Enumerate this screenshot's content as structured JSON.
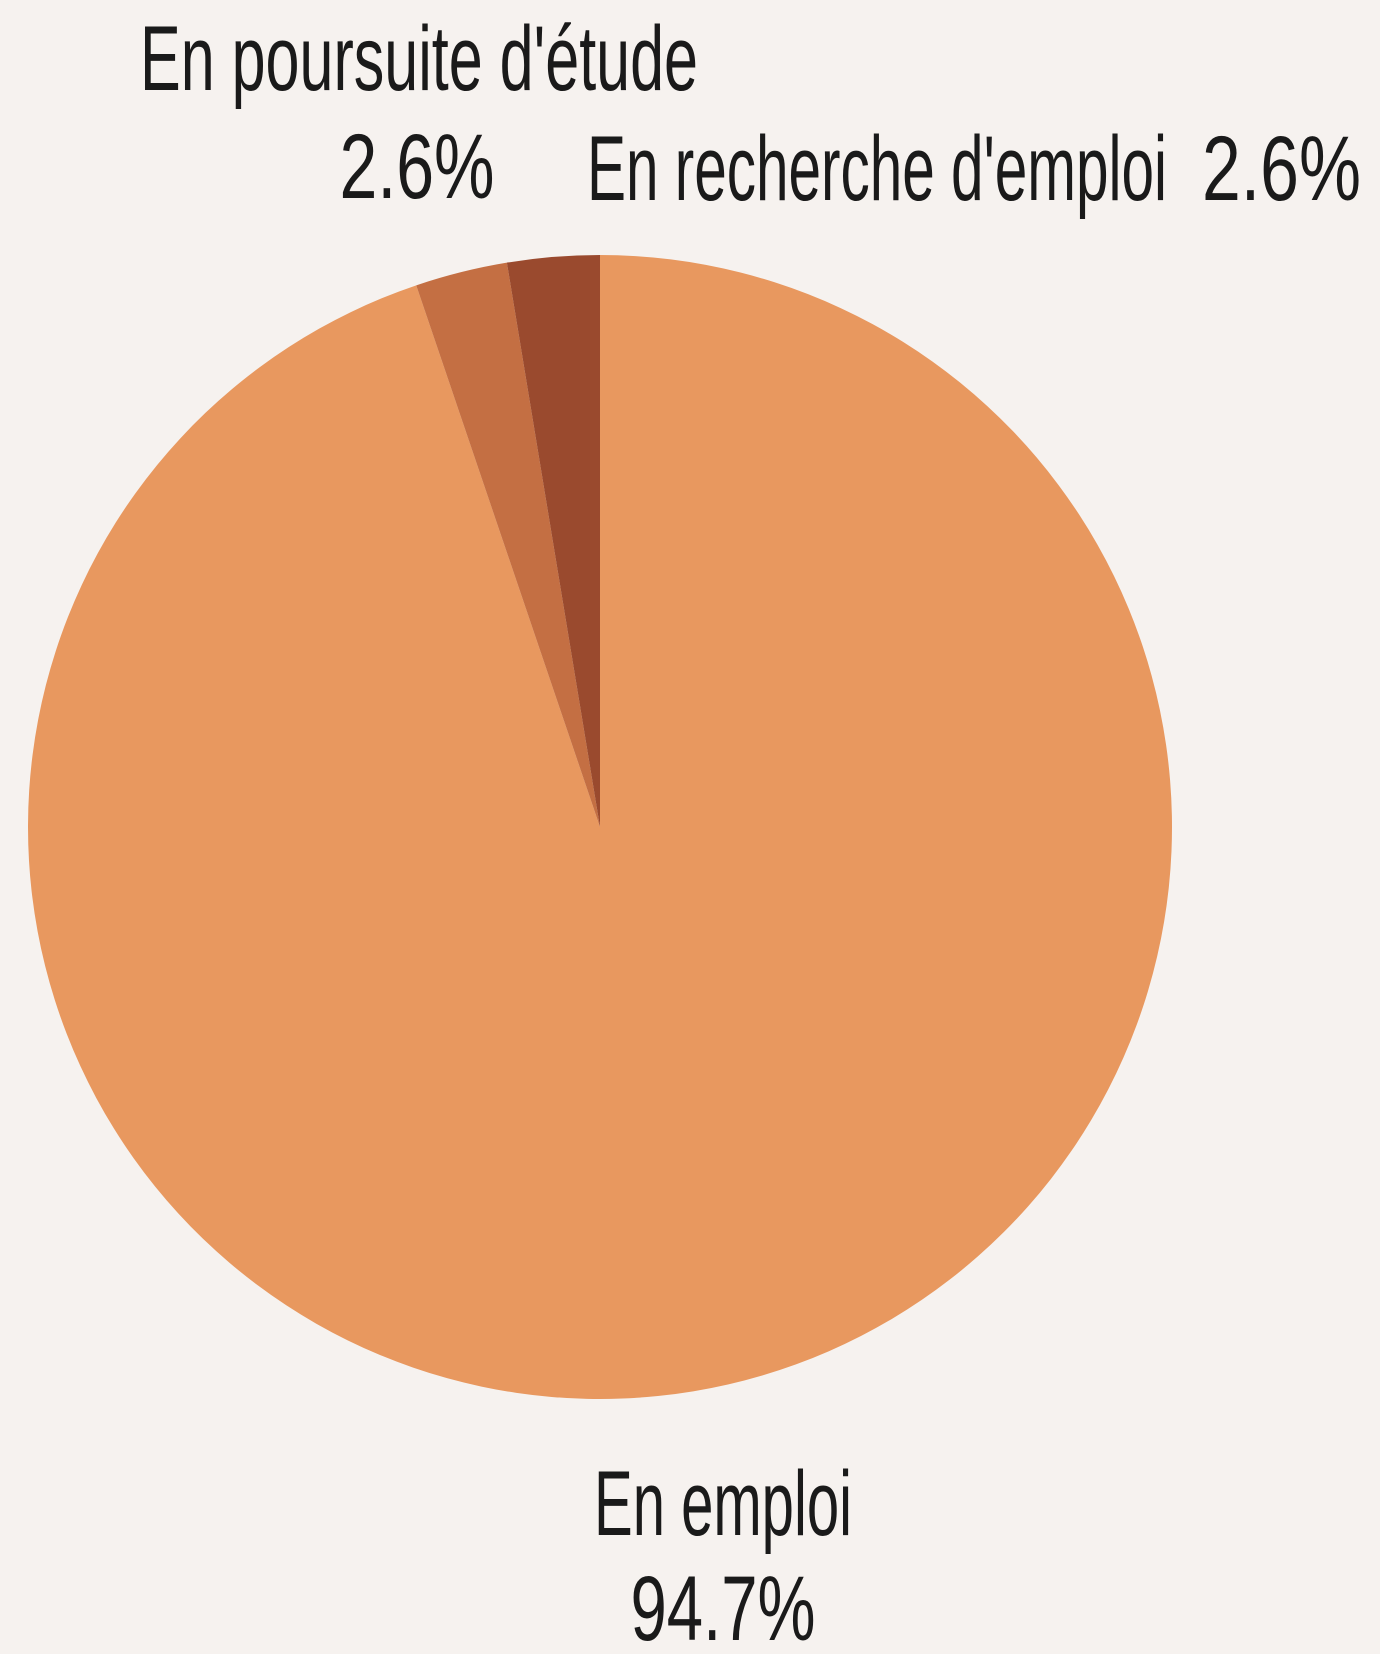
{
  "chart_data": {
    "type": "pie",
    "categories": [
      "En emploi",
      "En poursuite d'étude",
      "En recherche d'emploi"
    ],
    "values": [
      94.7,
      2.6,
      2.6
    ],
    "value_labels": [
      "94.7%",
      "2.6%",
      "2.6%"
    ],
    "colors": [
      "#e8985f",
      "#c46f43",
      "#9a4a2e"
    ]
  }
}
